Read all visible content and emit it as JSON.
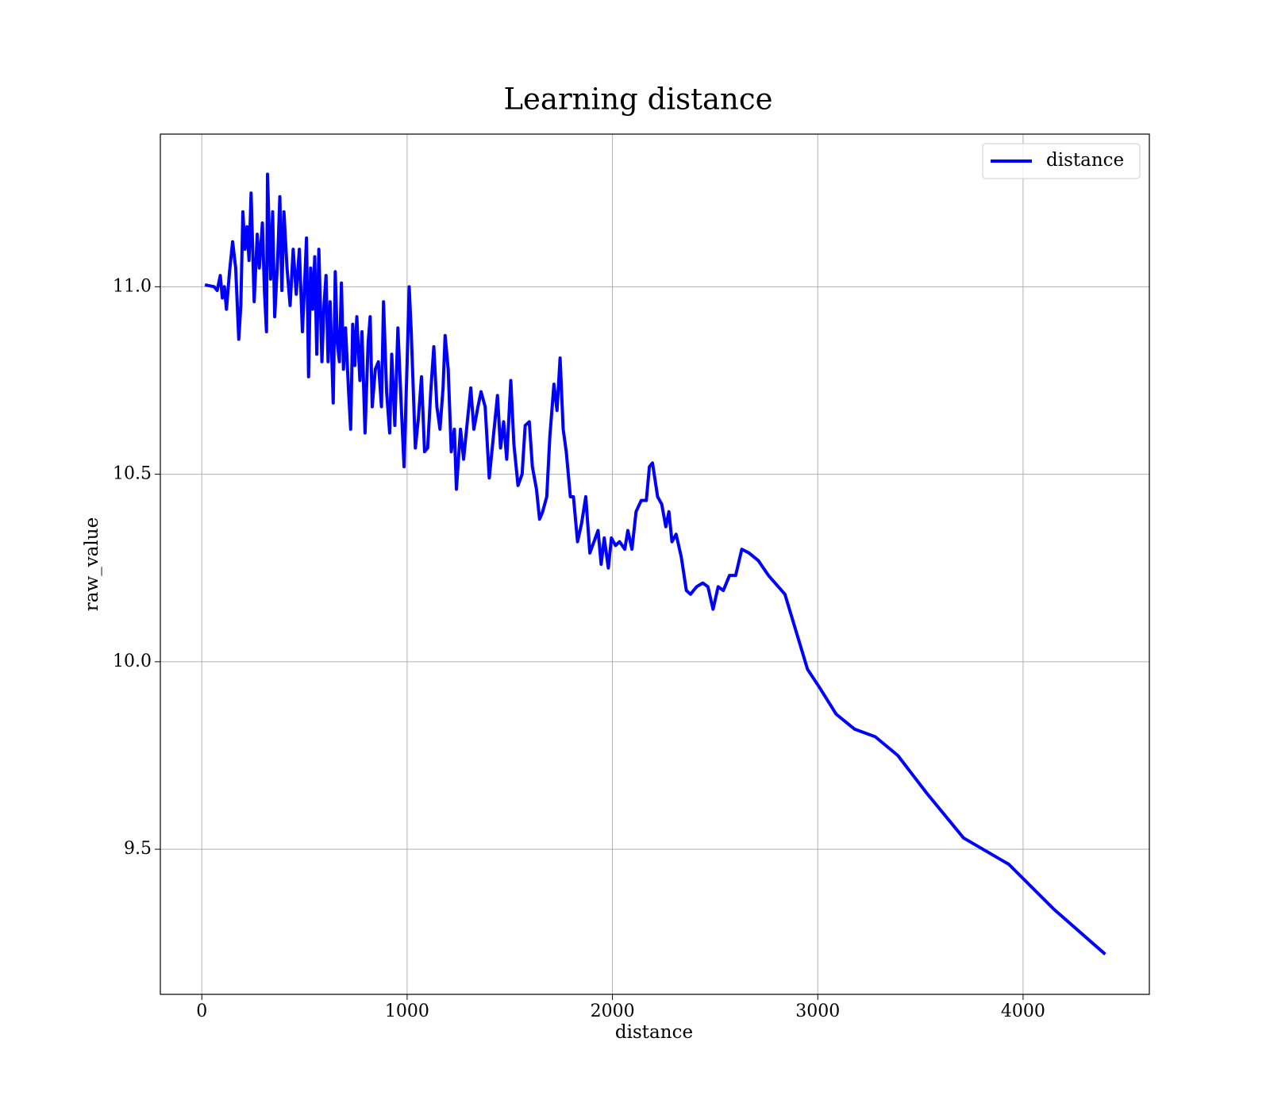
{
  "chart_data": {
    "type": "line",
    "title": "Learning distance",
    "xlabel": "distance",
    "ylabel": "raw_value",
    "x": [
      15,
      60,
      75,
      90,
      100,
      110,
      120,
      135,
      150,
      165,
      180,
      190,
      200,
      210,
      220,
      230,
      240,
      255,
      270,
      280,
      295,
      305,
      315,
      320,
      335,
      345,
      355,
      370,
      380,
      390,
      400,
      415,
      430,
      445,
      460,
      475,
      490,
      500,
      510,
      520,
      530,
      540,
      550,
      560,
      570,
      585,
      595,
      605,
      615,
      625,
      640,
      650,
      660,
      670,
      680,
      690,
      700,
      715,
      725,
      735,
      745,
      755,
      770,
      780,
      795,
      810,
      820,
      830,
      845,
      860,
      875,
      885,
      900,
      915,
      925,
      940,
      955,
      970,
      985,
      1000,
      1010,
      1020,
      1040,
      1055,
      1070,
      1085,
      1100,
      1115,
      1130,
      1145,
      1160,
      1175,
      1185,
      1200,
      1215,
      1230,
      1240,
      1260,
      1275,
      1295,
      1310,
      1325,
      1345,
      1360,
      1380,
      1400,
      1420,
      1440,
      1455,
      1470,
      1485,
      1505,
      1520,
      1540,
      1560,
      1575,
      1595,
      1610,
      1630,
      1645,
      1660,
      1680,
      1695,
      1715,
      1730,
      1745,
      1760,
      1775,
      1795,
      1810,
      1830,
      1850,
      1870,
      1890,
      1910,
      1930,
      1945,
      1960,
      1980,
      1995,
      2015,
      2035,
      2060,
      2075,
      2095,
      2115,
      2140,
      2165,
      2180,
      2195,
      2220,
      2240,
      2260,
      2275,
      2290,
      2310,
      2335,
      2360,
      2380,
      2410,
      2440,
      2465,
      2490,
      2515,
      2540,
      2570,
      2600,
      2630,
      2665,
      2710,
      2760,
      2840,
      2950,
      3010,
      3090,
      3180,
      3280,
      3390,
      3530,
      3710,
      3930,
      4150,
      4400
    ],
    "series": [
      {
        "name": "distance",
        "color": "#0000ff",
        "values": [
          11.005,
          11.0,
          10.99,
          11.03,
          10.97,
          11.0,
          10.94,
          11.04,
          11.12,
          11.05,
          10.86,
          10.95,
          11.2,
          11.1,
          11.16,
          11.07,
          11.25,
          10.96,
          11.14,
          11.05,
          11.17,
          10.99,
          10.88,
          11.3,
          11.02,
          11.2,
          10.92,
          11.08,
          11.24,
          10.99,
          11.2,
          11.05,
          10.95,
          11.1,
          10.98,
          11.1,
          10.88,
          11.0,
          11.13,
          10.76,
          11.05,
          10.94,
          11.08,
          10.82,
          11.1,
          10.8,
          10.95,
          11.03,
          10.8,
          10.96,
          10.69,
          11.04,
          10.85,
          10.8,
          11.01,
          10.78,
          10.89,
          10.72,
          10.62,
          10.9,
          10.79,
          10.92,
          10.75,
          10.88,
          10.61,
          10.85,
          10.92,
          10.68,
          10.78,
          10.8,
          10.68,
          10.96,
          10.72,
          10.61,
          10.82,
          10.63,
          10.89,
          10.7,
          10.52,
          10.8,
          11.0,
          10.88,
          10.57,
          10.65,
          10.76,
          10.56,
          10.57,
          10.72,
          10.84,
          10.68,
          10.62,
          10.73,
          10.87,
          10.78,
          10.56,
          10.62,
          10.46,
          10.62,
          10.54,
          10.65,
          10.73,
          10.62,
          10.68,
          10.72,
          10.68,
          10.49,
          10.6,
          10.71,
          10.57,
          10.64,
          10.54,
          10.75,
          10.58,
          10.47,
          10.5,
          10.63,
          10.64,
          10.52,
          10.46,
          10.38,
          10.4,
          10.44,
          10.6,
          10.74,
          10.67,
          10.81,
          10.62,
          10.56,
          10.44,
          10.44,
          10.32,
          10.37,
          10.44,
          10.29,
          10.32,
          10.35,
          10.26,
          10.33,
          10.25,
          10.33,
          10.31,
          10.32,
          10.3,
          10.35,
          10.3,
          10.4,
          10.43,
          10.43,
          10.52,
          10.53,
          10.44,
          10.42,
          10.36,
          10.4,
          10.32,
          10.34,
          10.28,
          10.19,
          10.18,
          10.2,
          10.21,
          10.2,
          10.14,
          10.2,
          10.19,
          10.23,
          10.23,
          10.3,
          10.29,
          10.27,
          10.23,
          10.18,
          9.98,
          9.93,
          9.86,
          9.82,
          9.8,
          9.75,
          9.65,
          9.53,
          9.46,
          9.34,
          9.22
        ]
      }
    ],
    "xlim": [
      -202,
      4615
    ],
    "ylim": [
      9.113,
      11.407
    ],
    "xticks": [
      0,
      1000,
      2000,
      3000,
      4000
    ],
    "yticks": [
      9.5,
      {
        "value": 10,
        "label": "10.0"
      },
      10.5,
      {
        "value": 11,
        "label": "11.0"
      }
    ],
    "grid": true,
    "legend": "upper right"
  }
}
